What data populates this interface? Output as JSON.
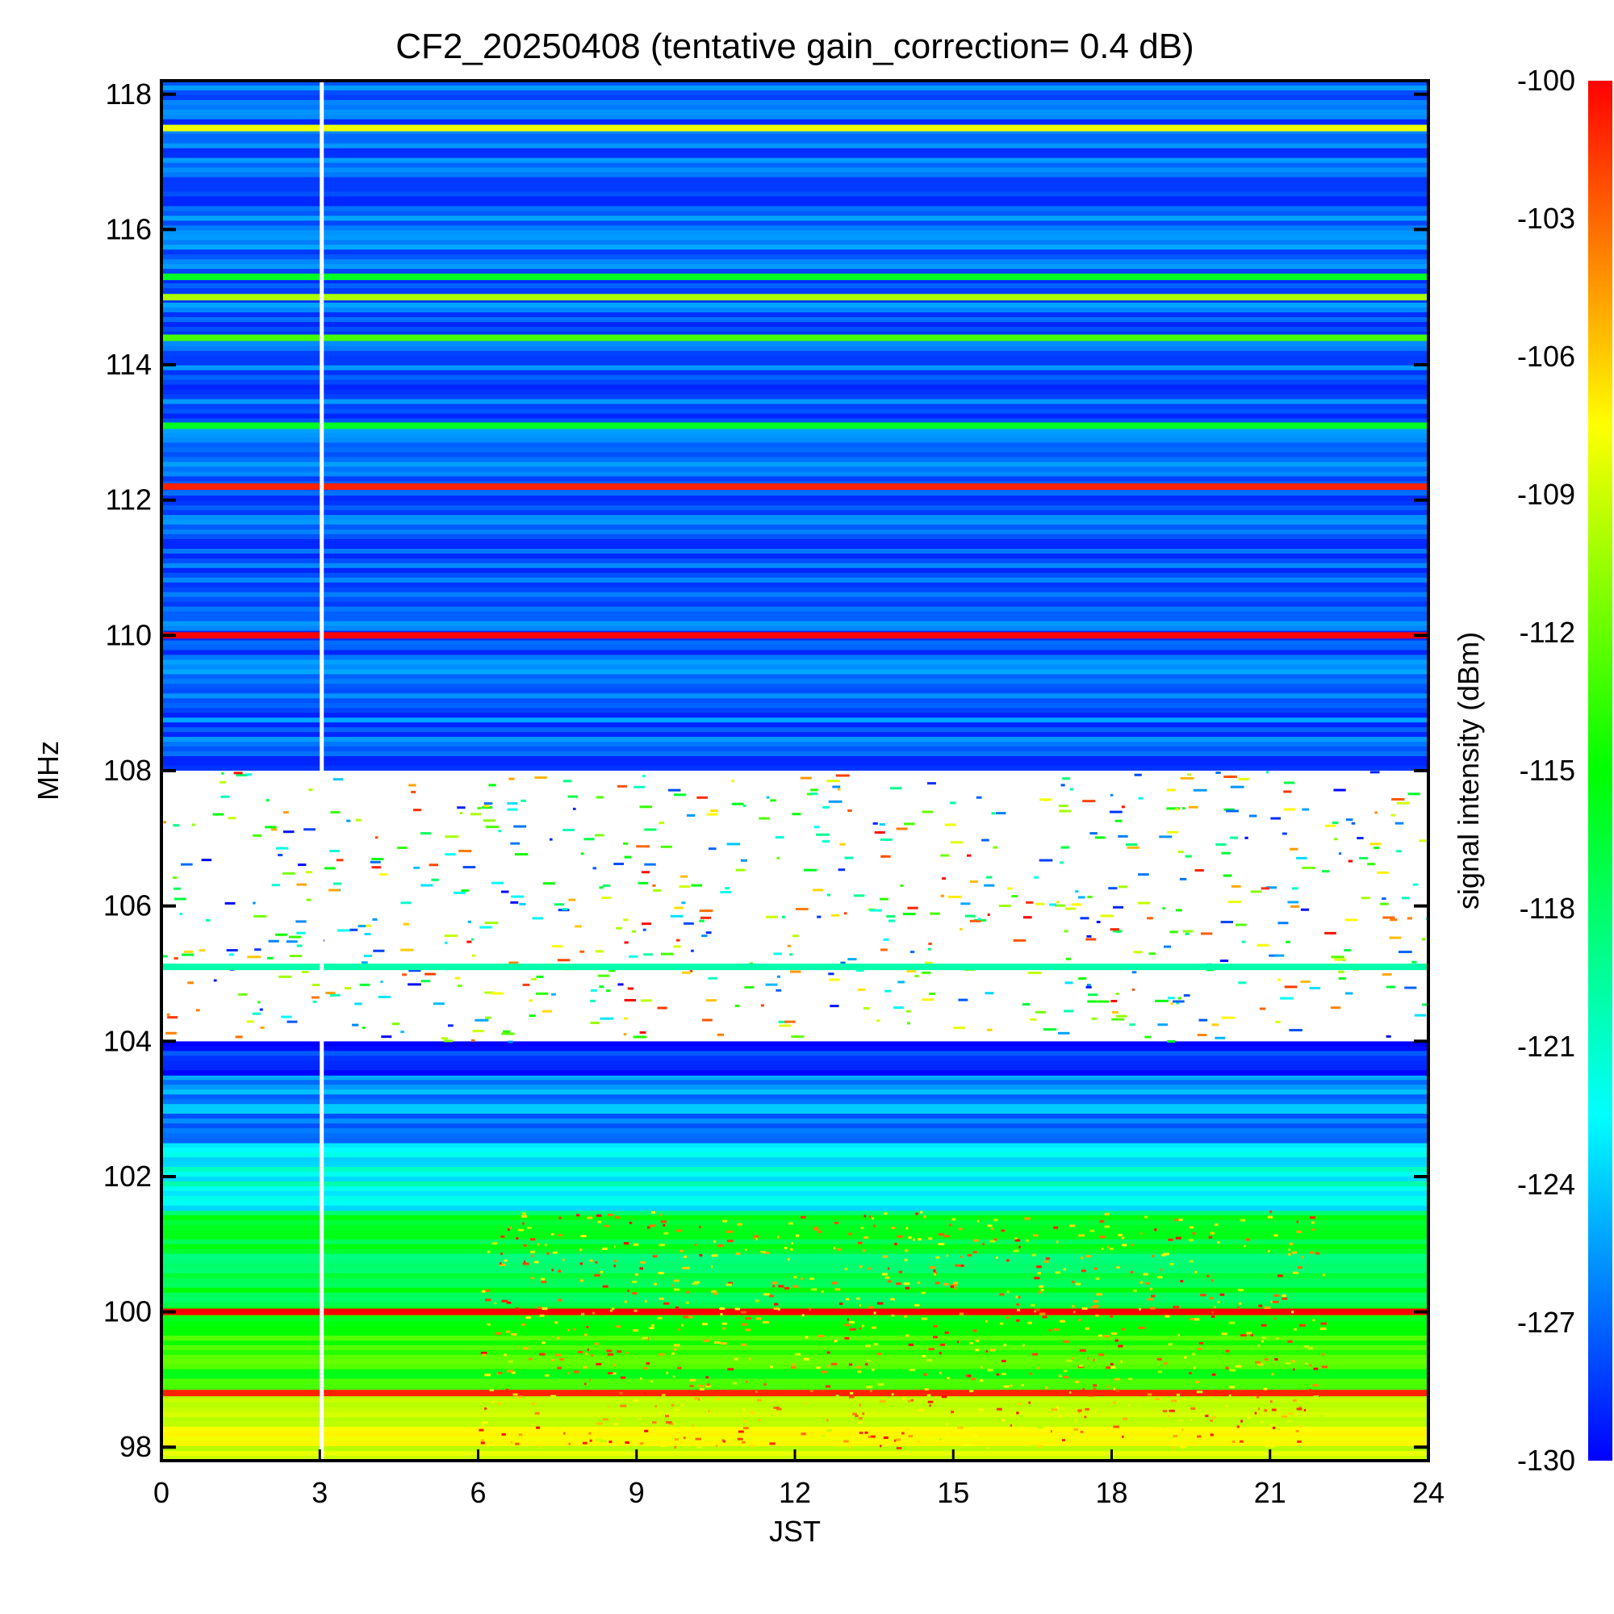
{
  "chart_data": {
    "type": "heatmap",
    "title": "CF2_20250408 (tentative gain_correction=  0.4 dB)",
    "xlabel": "JST",
    "ylabel": "MHz",
    "colorbar_label": "signal intensity (dBm)",
    "xlim": [
      0,
      24
    ],
    "ylim": [
      97.8,
      118.2
    ],
    "x_ticks": [
      0,
      3,
      6,
      9,
      12,
      15,
      18,
      21,
      24
    ],
    "x_tick_labels": [
      "0",
      "3",
      "6",
      "9",
      "12",
      "15",
      "18",
      "21",
      "24"
    ],
    "y_ticks": [
      98,
      100,
      102,
      104,
      106,
      108,
      110,
      112,
      114,
      116,
      118
    ],
    "y_tick_labels": [
      "98",
      "100",
      "102",
      "104",
      "106",
      "108",
      "110",
      "112",
      "114",
      "116",
      "118"
    ],
    "colorbar_range": [
      -130,
      -100
    ],
    "colorbar_ticks": [
      -100,
      -103,
      -106,
      -109,
      -112,
      -115,
      -118,
      -121,
      -124,
      -127,
      -130
    ],
    "colorbar_tick_labels": [
      "-100",
      "-103",
      "-106",
      "-109",
      "-112",
      "-115",
      "-118",
      "-121",
      "-124",
      "-127",
      "-130"
    ],
    "colormap": [
      "#0000ff",
      "#0080ff",
      "#00ffff",
      "#00ff80",
      "#00ff00",
      "#80ff00",
      "#ffff00",
      "#ff8000",
      "#ff0000"
    ],
    "data_gap_jst": 3.0,
    "background_levels": [
      {
        "f_from": 97.8,
        "f_to": 98.8,
        "dbm": -109
      },
      {
        "f_from": 98.8,
        "f_to": 100.0,
        "dbm": -114
      },
      {
        "f_from": 100.0,
        "f_to": 101.5,
        "dbm": -117
      },
      {
        "f_from": 101.5,
        "f_to": 102.5,
        "dbm": -122
      },
      {
        "f_from": 102.5,
        "f_to": 103.5,
        "dbm": -126
      },
      {
        "f_from": 103.5,
        "f_to": 104.0,
        "dbm": -129
      },
      {
        "f_from": 108.0,
        "f_to": 118.2,
        "dbm": -127
      }
    ],
    "strong_channels": [
      {
        "freq": 100.0,
        "dbm": -100
      },
      {
        "freq": 110.0,
        "dbm": -100
      },
      {
        "freq": 112.2,
        "dbm": -101
      },
      {
        "freq": 117.5,
        "dbm": -108
      },
      {
        "freq": 115.0,
        "dbm": -110
      },
      {
        "freq": 115.3,
        "dbm": -116
      },
      {
        "freq": 114.4,
        "dbm": -113
      },
      {
        "freq": 113.1,
        "dbm": -116
      },
      {
        "freq": 105.1,
        "dbm": -120
      },
      {
        "freq": 98.8,
        "dbm": -101
      }
    ]
  }
}
